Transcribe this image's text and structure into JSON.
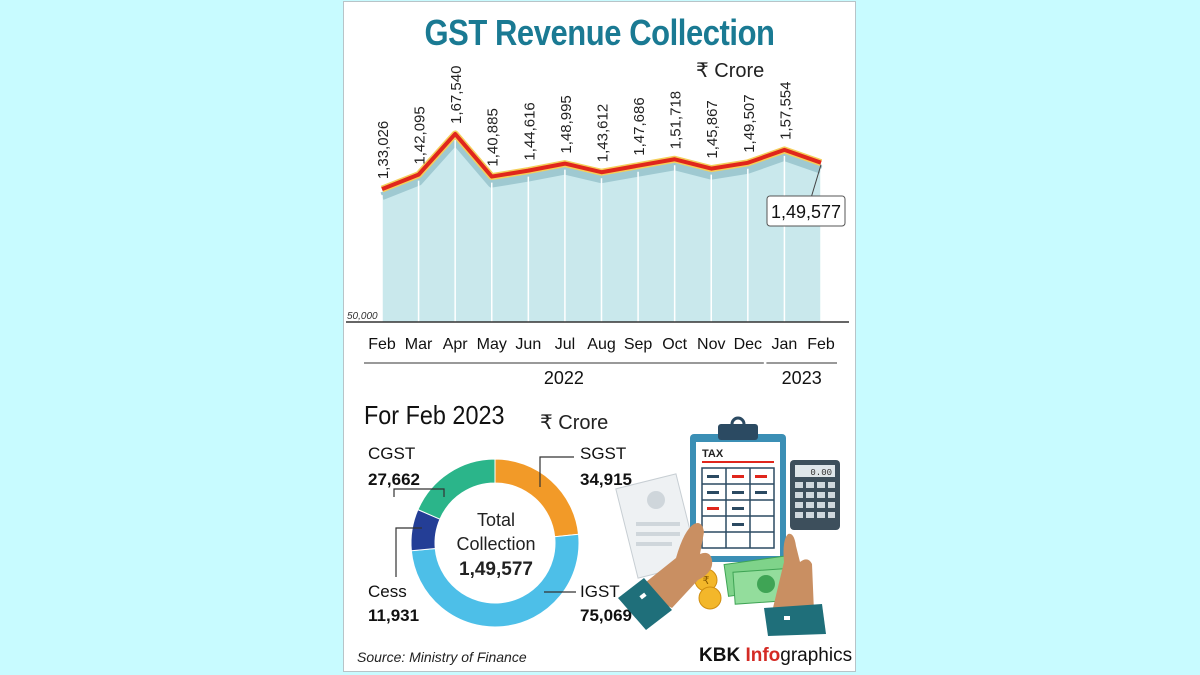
{
  "title": "GST Revenue Collection",
  "unit": "₹ Crore",
  "chart_data": [
    {
      "type": "line",
      "title": "GST Revenue Collection",
      "ylabel": "₹ Crore",
      "y_min_label": "50,000",
      "ylim": [
        50000,
        170000
      ],
      "categories": [
        "Feb",
        "Mar",
        "Apr",
        "May",
        "Jun",
        "Jul",
        "Aug",
        "Sep",
        "Oct",
        "Nov",
        "Dec",
        "Jan",
        "Feb"
      ],
      "year_groups": [
        {
          "label": "2022",
          "from": 0,
          "to": 10
        },
        {
          "label": "2023",
          "from": 11,
          "to": 12
        }
      ],
      "values": [
        133026,
        142095,
        167540,
        140885,
        144616,
        148995,
        143612,
        147686,
        151718,
        145867,
        149507,
        157554,
        149577
      ],
      "value_labels": [
        "1,33,026",
        "1,42,095",
        "1,67,540",
        "1,40,885",
        "1,44,616",
        "1,48,995",
        "1,43,612",
        "1,47,686",
        "1,51,718",
        "1,45,867",
        "1,49,507",
        "1,57,554",
        "1,49,577"
      ],
      "highlight_index": 12,
      "line_color": "#e0261c",
      "fill_color": "#c9e8ec"
    },
    {
      "type": "pie",
      "title": "For Feb 2023",
      "unit": "₹ Crore",
      "center_lines": [
        "Total",
        "Collection"
      ],
      "total_label": "1,49,577",
      "slices": [
        {
          "name": "SGST",
          "value": 34915,
          "label": "34,915",
          "color": "#f29a28"
        },
        {
          "name": "IGST",
          "value": 75069,
          "label": "75,069",
          "color": "#4dbfe8"
        },
        {
          "name": "Cess",
          "value": 11931,
          "label": "11,931",
          "color": "#243e96"
        },
        {
          "name": "CGST",
          "value": 27662,
          "label": "27,662",
          "color": "#2bb58a"
        }
      ]
    }
  ],
  "source": "Source: Ministry of Finance",
  "brand": {
    "part1": "KBK ",
    "part2": "Info",
    "part3": "graphics"
  },
  "illustration": {
    "tax_label": "TAX",
    "calculator_display": "0.00",
    "coin_symbol": "₹"
  }
}
